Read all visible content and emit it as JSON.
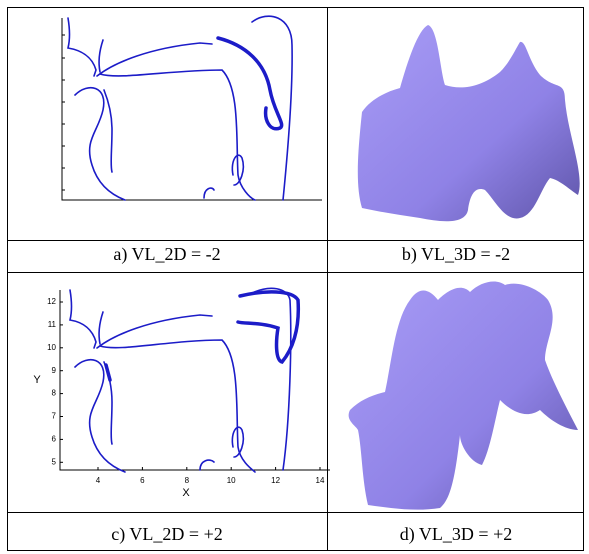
{
  "panels": [
    {
      "caption": "a) VL_2D = -2"
    },
    {
      "caption": "b) VL_3D = -2"
    },
    {
      "caption": "c) VL_2D = +2"
    },
    {
      "caption": "d) VL_3D = +2"
    }
  ],
  "plot": {
    "x_label": "X",
    "y_label": "Y",
    "x_ticks": [
      4,
      6,
      8,
      10,
      12,
      14
    ],
    "y_ticks": [
      5,
      6,
      7,
      8,
      9,
      10,
      11,
      12
    ]
  }
}
